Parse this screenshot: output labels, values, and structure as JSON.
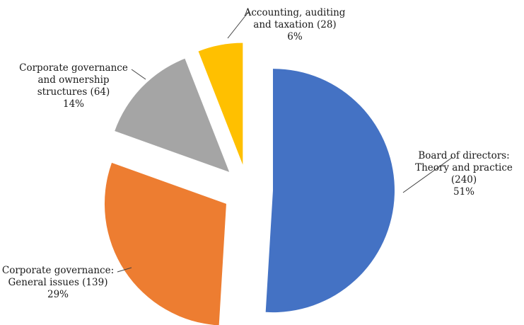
{
  "chart_data": {
    "type": "pie",
    "title": "",
    "exploded": true,
    "slices": [
      {
        "label_lines": [
          "Board of directors:",
          "Theory and practice",
          "(240)",
          "51%"
        ],
        "name": "Board of directors: Theory and practice",
        "value": 240,
        "percent": "51%",
        "color": "#4472C4"
      },
      {
        "label_lines": [
          "Corporate governance:",
          "General issues (139)",
          "29%"
        ],
        "name": "Corporate governance: General issues",
        "value": 139,
        "percent": "29%",
        "color": "#ED7D31"
      },
      {
        "label_lines": [
          "Corporate governance",
          "and ownership",
          "structures (64)",
          "14%"
        ],
        "name": "Corporate governance and ownership structures",
        "value": 64,
        "percent": "14%",
        "color": "#A5A5A5"
      },
      {
        "label_lines": [
          "Accounting, auditing",
          "and taxation (28)",
          "6%"
        ],
        "name": "Accounting, auditing and taxation",
        "value": 28,
        "percent": "6%",
        "color": "#FFC000"
      }
    ]
  }
}
